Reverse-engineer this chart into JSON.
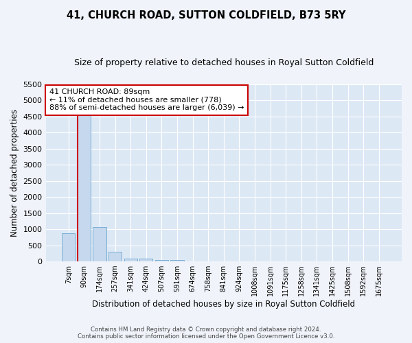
{
  "title": "41, CHURCH ROAD, SUTTON COLDFIELD, B73 5RY",
  "subtitle": "Size of property relative to detached houses in Royal Sutton Coldfield",
  "xlabel": "Distribution of detached houses by size in Royal Sutton Coldfield",
  "ylabel": "Number of detached properties",
  "footer_line1": "Contains HM Land Registry data © Crown copyright and database right 2024.",
  "footer_line2": "Contains public sector information licensed under the Open Government Licence v3.0.",
  "bar_labels": [
    "7sqm",
    "90sqm",
    "174sqm",
    "257sqm",
    "341sqm",
    "424sqm",
    "507sqm",
    "591sqm",
    "674sqm",
    "758sqm",
    "841sqm",
    "924sqm",
    "1008sqm",
    "1091sqm",
    "1175sqm",
    "1258sqm",
    "1341sqm",
    "1425sqm",
    "1508sqm",
    "1592sqm",
    "1675sqm"
  ],
  "bar_values": [
    880,
    4550,
    1060,
    290,
    90,
    80,
    50,
    50,
    0,
    0,
    0,
    0,
    0,
    0,
    0,
    0,
    0,
    0,
    0,
    0,
    0
  ],
  "bar_color": "#c5d8ed",
  "bar_edge_color": "#7aafd4",
  "highlight_line_color": "#cc0000",
  "annotation_text": "41 CHURCH ROAD: 89sqm\n← 11% of detached houses are smaller (778)\n88% of semi-detached houses are larger (6,039) →",
  "annotation_box_color": "#ffffff",
  "annotation_box_edge_color": "#cc0000",
  "annotation_fontsize": 8.0,
  "ylim": [
    0,
    5500
  ],
  "yticks": [
    0,
    500,
    1000,
    1500,
    2000,
    2500,
    3000,
    3500,
    4000,
    4500,
    5000,
    5500
  ],
  "title_fontsize": 10.5,
  "subtitle_fontsize": 9,
  "xlabel_fontsize": 8.5,
  "ylabel_fontsize": 8.5,
  "xtick_fontsize": 7,
  "ytick_fontsize": 8,
  "bg_color": "#f0f4fa",
  "plot_bg_color": "#dde8f5"
}
